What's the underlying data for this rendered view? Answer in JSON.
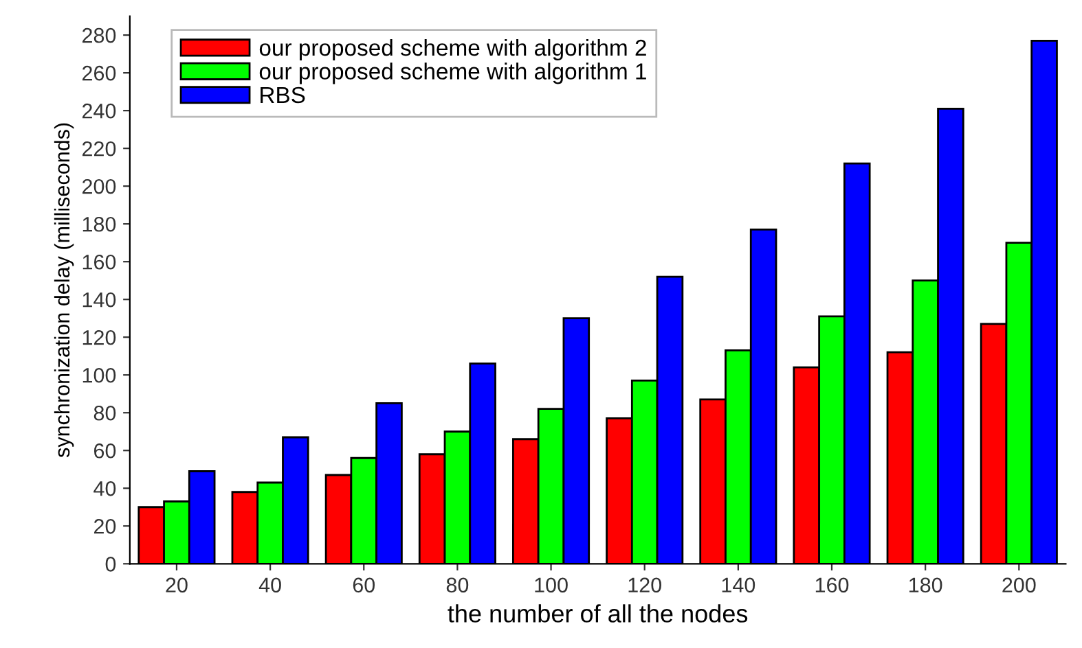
{
  "chart_data": {
    "type": "bar",
    "xlabel": "the number of all the nodes",
    "ylabel": "synchronization delay (milliseconds)",
    "categories": [
      "20",
      "40",
      "60",
      "80",
      "100",
      "120",
      "140",
      "160",
      "180",
      "200"
    ],
    "series": [
      {
        "name": "our proposed scheme with algorithm 2",
        "color": "#ff0000",
        "values": [
          30,
          38,
          47,
          58,
          66,
          77,
          87,
          104,
          112,
          127
        ]
      },
      {
        "name": "our proposed scheme with algorithm 1",
        "color": "#00ff00",
        "values": [
          33,
          43,
          56,
          70,
          82,
          97,
          113,
          131,
          150,
          170
        ]
      },
      {
        "name": "RBS",
        "color": "#0000ff",
        "values": [
          49,
          67,
          85,
          106,
          130,
          152,
          177,
          212,
          241,
          277
        ]
      }
    ],
    "ylim": [
      0,
      290
    ],
    "yticks": [
      0,
      20,
      40,
      60,
      80,
      100,
      120,
      140,
      160,
      180,
      200,
      220,
      240,
      260,
      280
    ],
    "grid": false,
    "legend": "top left"
  }
}
